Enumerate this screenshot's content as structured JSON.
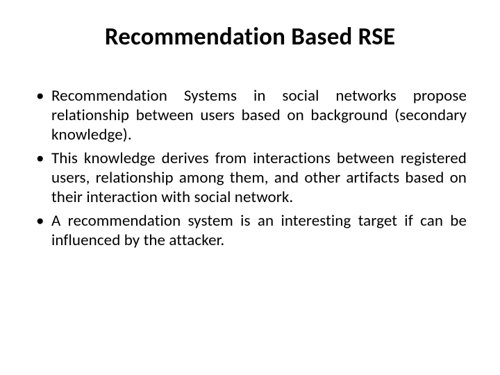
{
  "slide": {
    "background_color": "#ffffff",
    "text_color": "#000000",
    "title": {
      "text": "Recommendation Based RSE",
      "font_size": 35,
      "font_weight": 700,
      "align": "center"
    },
    "bullets": {
      "font_size": 23,
      "line_height": 1.22,
      "text_align": "justify",
      "marker": "•",
      "items": [
        "Recommendation Systems in social networks propose relationship between users based on background (secondary knowledge).",
        "This knowledge derives from interactions between registered users, relationship among them, and other artifacts based on their interaction with social network.",
        "A recommendation system is an interesting target if can be influenced by the attacker."
      ]
    }
  }
}
